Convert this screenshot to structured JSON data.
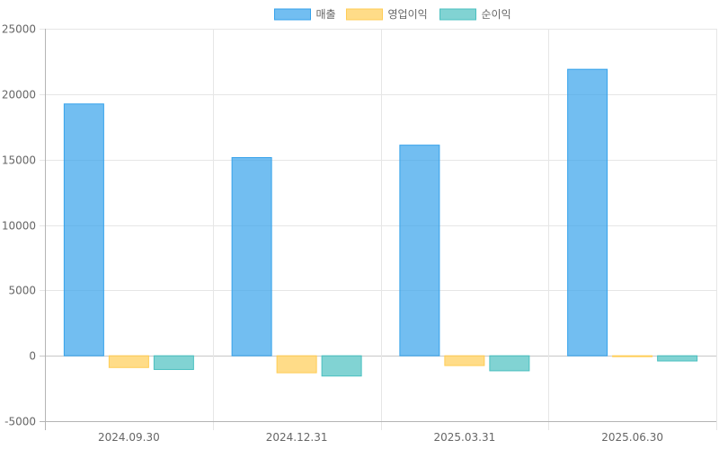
{
  "chart_data": {
    "type": "bar",
    "categories": [
      "2024.09.30",
      "2024.12.31",
      "2025.03.31",
      "2025.06.30"
    ],
    "series": [
      {
        "name": "매출",
        "values": [
          19250,
          15150,
          16100,
          21900
        ],
        "fill": "rgba(54,162,235,0.7)",
        "stroke": "#36a2eb"
      },
      {
        "name": "영업이익",
        "values": [
          -900,
          -1300,
          -750,
          -50
        ],
        "fill": "rgba(255,205,86,0.7)",
        "stroke": "#ffcd56"
      },
      {
        "name": "순이익",
        "values": [
          -1050,
          -1550,
          -1150,
          -400
        ],
        "fill": "rgba(75,192,192,0.7)",
        "stroke": "#4bc0c0"
      }
    ],
    "yticks": [
      25000,
      20000,
      15000,
      10000,
      5000,
      0,
      -5000
    ],
    "ylim": [
      -5000,
      25000
    ],
    "grid": true,
    "legend_position": "top"
  }
}
